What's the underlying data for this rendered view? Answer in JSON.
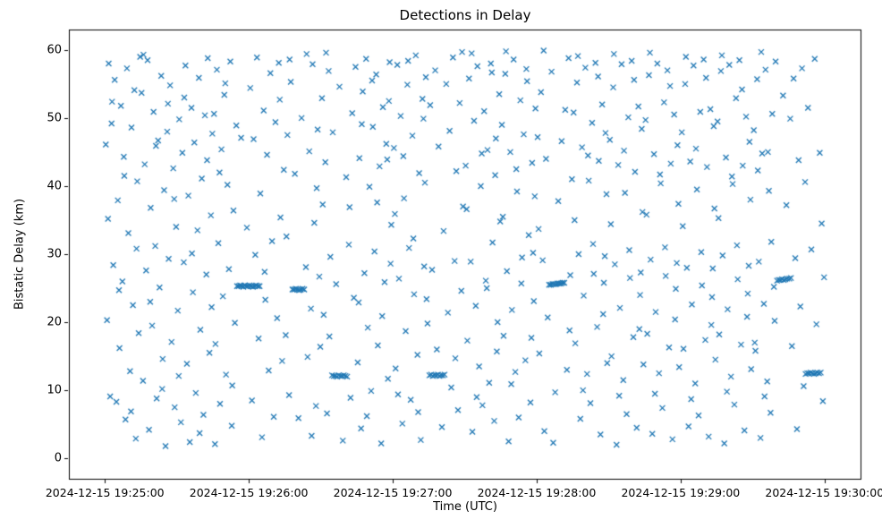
{
  "chart_data": {
    "type": "scatter",
    "title": "Detections in Delay",
    "xlabel": "Time (UTC)",
    "ylabel": "Bistatic Delay (km)",
    "marker": "x",
    "marker_color": "#1f77b4",
    "legend": "none",
    "grid": false,
    "x_axis": {
      "range_seconds": [
        -15,
        315
      ],
      "tick_seconds": [
        0,
        60,
        120,
        180,
        240,
        300
      ],
      "tick_labels": [
        "2024-12-15 19:25:00",
        "2024-12-15 19:26:00",
        "2024-12-15 19:27:00",
        "2024-12-15 19:28:00",
        "2024-12-15 19:29:00",
        "2024-12-15 19:30:00"
      ]
    },
    "y_axis": {
      "range": [
        -3,
        63
      ],
      "ticks": [
        0,
        10,
        20,
        30,
        40,
        50,
        60
      ]
    },
    "points_xy": [
      0.4,
      46.1,
      0.9,
      20.3,
      1.6,
      58.0,
      2.2,
      9.1,
      2.8,
      49.2,
      3.5,
      28.4,
      4.1,
      55.6,
      4.8,
      8.3,
      5.4,
      37.9,
      6.1,
      16.2,
      6.7,
      51.8,
      7.3,
      26.0,
      7.9,
      44.3,
      8.6,
      5.7,
      9.2,
      57.3,
      9.8,
      33.1,
      10.5,
      12.8,
      11.1,
      48.6,
      11.7,
      22.5,
      12.3,
      54.1,
      12.9,
      2.9,
      13.5,
      40.7,
      14.1,
      18.4,
      14.7,
      59.0,
      1.3,
      35.2,
      3.0,
      52.4,
      5.9,
      24.7,
      8.1,
      41.5,
      10.9,
      6.9,
      13.2,
      30.8,
      15.3,
      53.7,
      15.9,
      11.4,
      16.6,
      43.2,
      17.2,
      27.6,
      17.8,
      58.5,
      18.4,
      4.2,
      19.1,
      36.8,
      19.7,
      19.5,
      20.3,
      50.9,
      21.0,
      31.2,
      21.6,
      8.8,
      22.2,
      46.7,
      22.8,
      25.1,
      23.5,
      56.2,
      24.1,
      14.6,
      24.7,
      39.4,
      25.3,
      1.8,
      26.0,
      48.0,
      26.6,
      29.3,
      27.2,
      54.8,
      27.8,
      17.1,
      28.5,
      42.6,
      29.1,
      7.5,
      29.7,
      34.0,
      16.1,
      59.3,
      18.9,
      23.0,
      21.3,
      45.9,
      23.9,
      10.2,
      26.3,
      52.1,
      28.9,
      38.1,
      30.4,
      21.7,
      31.0,
      49.8,
      31.7,
      5.3,
      32.3,
      44.9,
      32.9,
      28.8,
      33.6,
      57.7,
      34.2,
      13.9,
      34.8,
      38.6,
      35.4,
      2.4,
      36.1,
      51.5,
      36.7,
      24.4,
      37.3,
      46.4,
      37.9,
      9.6,
      38.6,
      33.5,
      39.2,
      55.9,
      39.8,
      18.9,
      40.4,
      41.1,
      41.1,
      6.4,
      41.7,
      50.4,
      42.3,
      27.0,
      42.9,
      58.8,
      43.6,
      15.5,
      44.2,
      35.7,
      44.8,
      47.7,
      30.8,
      12.1,
      33.1,
      53.0,
      36.3,
      30.1,
      39.5,
      3.7,
      42.6,
      43.8,
      44.5,
      22.2,
      45.5,
      50.6,
      46.1,
      16.8,
      46.7,
      57.1,
      47.3,
      31.6,
      48.0,
      8.0,
      48.6,
      45.4,
      49.2,
      23.8,
      49.8,
      53.4,
      50.5,
      12.3,
      51.1,
      40.2,
      51.7,
      27.8,
      52.3,
      58.3,
      52.9,
      4.8,
      53.6,
      36.4,
      54.2,
      19.9,
      54.8,
      48.9,
      55.1,
      25.3,
      55.8,
      25.3,
      56.4,
      25.4,
      57.0,
      25.3,
      57.7,
      25.2,
      58.3,
      25.4,
      58.9,
      25.3,
      59.6,
      25.3,
      45.9,
      2.1,
      47.8,
      42.0,
      50.2,
      55.1,
      53.1,
      10.7,
      56.8,
      47.1,
      59.2,
      33.9,
      60.3,
      25.4,
      61.0,
      25.3,
      61.7,
      25.2,
      62.4,
      25.3,
      63.1,
      25.4,
      63.8,
      25.3,
      64.5,
      25.3,
      60.6,
      54.4,
      61.3,
      8.5,
      62.0,
      46.9,
      62.7,
      29.9,
      63.4,
      58.9,
      64.1,
      17.6,
      64.8,
      38.9,
      65.5,
      3.1,
      66.2,
      51.1,
      66.9,
      23.3,
      67.6,
      44.6,
      68.3,
      12.9,
      69.0,
      56.6,
      69.7,
      31.9,
      70.4,
      6.1,
      71.1,
      49.4,
      71.8,
      20.6,
      72.5,
      58.1,
      73.2,
      35.4,
      73.9,
      14.3,
      74.6,
      42.4,
      66.6,
      27.4,
      72.9,
      52.7,
      75.4,
      18.1,
      76.1,
      47.5,
      76.8,
      9.3,
      77.5,
      55.3,
      78.2,
      24.8,
      78.9,
      24.8,
      79.6,
      24.9,
      80.3,
      24.8,
      81.0,
      24.7,
      81.7,
      24.8,
      82.4,
      24.9,
      83.1,
      24.8,
      75.7,
      32.6,
      77.0,
      58.6,
      79.2,
      41.8,
      80.7,
      5.9,
      82.0,
      50.0,
      83.8,
      28.1,
      84.5,
      14.9,
      85.2,
      45.1,
      85.9,
      22.0,
      86.6,
      57.9,
      87.3,
      34.6,
      88.0,
      7.7,
      88.7,
      48.3,
      89.4,
      26.7,
      84.1,
      59.4,
      86.2,
      3.3,
      88.3,
      39.7,
      89.8,
      16.4,
      90.5,
      52.9,
      91.2,
      21.1,
      91.9,
      43.5,
      92.6,
      6.6,
      93.3,
      56.9,
      94.0,
      29.6,
      94.7,
      12.2,
      95.4,
      12.1,
      96.1,
      12.1,
      96.8,
      12.0,
      97.5,
      12.2,
      98.2,
      12.1,
      98.9,
      12.1,
      99.6,
      12.2,
      100.3,
      12.1,
      101.0,
      12.0,
      90.8,
      37.3,
      92.2,
      59.6,
      93.6,
      17.9,
      95.0,
      47.9,
      96.4,
      25.6,
      97.8,
      54.6,
      99.2,
      2.6,
      100.6,
      41.3,
      101.7,
      31.4,
      102.4,
      8.9,
      103.1,
      50.7,
      103.8,
      23.6,
      104.5,
      57.5,
      102.0,
      36.9,
      105.4,
      14.1,
      106.1,
      44.1,
      106.8,
      4.4,
      107.5,
      53.9,
      108.2,
      27.2,
      108.9,
      58.7,
      109.6,
      19.2,
      110.3,
      39.9,
      111.0,
      9.9,
      111.7,
      48.7,
      112.4,
      30.4,
      113.1,
      56.4,
      113.8,
      16.6,
      114.5,
      42.9,
      115.2,
      2.2,
      115.9,
      51.6,
      116.6,
      25.9,
      117.3,
      46.2,
      118.0,
      11.7,
      118.7,
      58.2,
      119.4,
      34.3,
      105.8,
      22.9,
      107.1,
      49.1,
      109.2,
      6.2,
      111.4,
      55.5,
      113.5,
      37.6,
      115.6,
      20.9,
      117.7,
      43.9,
      119.1,
      28.6,
      118.4,
      52.5,
      120.5,
      45.6,
      121.2,
      13.2,
      121.9,
      57.8,
      122.6,
      26.4,
      123.3,
      50.3,
      124.0,
      5.1,
      124.7,
      38.2,
      125.4,
      18.7,
      126.1,
      54.9,
      126.8,
      30.9,
      127.5,
      8.6,
      128.2,
      47.4,
      128.9,
      24.1,
      129.6,
      59.2,
      130.3,
      15.2,
      131.0,
      41.9,
      131.7,
      2.7,
      132.4,
      52.8,
      133.1,
      28.2,
      133.8,
      56.0,
      134.5,
      19.8,
      120.9,
      35.9,
      122.2,
      9.4,
      124.4,
      44.4,
      126.4,
      58.4,
      128.6,
      32.3,
      130.6,
      6.8,
      132.8,
      49.9,
      134.1,
      23.4,
      133.4,
      40.5,
      135.3,
      12.2,
      136.0,
      12.3,
      136.7,
      12.1,
      137.4,
      12.2,
      138.1,
      12.2,
      138.8,
      12.3,
      139.5,
      12.1,
      140.2,
      12.2,
      140.9,
      12.2,
      141.6,
      12.3,
      135.6,
      51.9,
      136.4,
      27.7,
      137.7,
      57.0,
      138.4,
      16.0,
      139.1,
      45.8,
      140.5,
      4.6,
      141.2,
      33.4,
      142.3,
      55.0,
      143.0,
      21.4,
      143.7,
      48.1,
      144.4,
      10.4,
      145.1,
      58.9,
      145.8,
      29.0,
      146.5,
      42.2,
      147.2,
      7.1,
      147.9,
      52.2,
      148.6,
      24.6,
      149.3,
      37.0,
      148.9,
      59.7,
      146.1,
      14.7,
      150.4,
      43.0,
      151.1,
      17.3,
      151.8,
      55.8,
      152.5,
      28.9,
      153.2,
      3.9,
      153.9,
      49.6,
      154.6,
      22.4,
      155.3,
      57.6,
      156.0,
      13.5,
      156.7,
      40.0,
      157.4,
      7.8,
      158.1,
      51.0,
      158.8,
      26.1,
      159.5,
      45.3,
      160.2,
      11.1,
      160.9,
      58.0,
      161.6,
      31.7,
      162.3,
      5.5,
      163.0,
      47.0,
      163.7,
      20.0,
      164.4,
      53.5,
      150.8,
      36.6,
      152.9,
      59.5,
      155.0,
      9.0,
      157.1,
      44.8,
      159.2,
      25.0,
      161.3,
      56.7,
      163.4,
      15.7,
      164.8,
      34.8,
      162.7,
      41.6,
      165.5,
      49.0,
      166.2,
      18.0,
      166.9,
      56.5,
      167.6,
      27.5,
      168.3,
      2.5,
      169.0,
      45.0,
      169.7,
      21.8,
      170.4,
      58.6,
      171.1,
      12.7,
      171.8,
      39.2,
      172.5,
      6.0,
      173.2,
      52.6,
      173.9,
      29.5,
      174.6,
      47.6,
      175.3,
      14.4,
      176.0,
      55.4,
      176.7,
      32.8,
      177.4,
      8.2,
      178.1,
      43.4,
      178.8,
      23.1,
      179.5,
      51.4,
      165.9,
      35.5,
      167.2,
      59.8,
      169.4,
      10.9,
      171.5,
      42.5,
      173.6,
      25.7,
      175.7,
      57.2,
      177.8,
      17.7,
      179.2,
      38.5,
      178.5,
      30.2,
      185.2,
      25.5,
      185.9,
      25.5,
      186.6,
      25.6,
      187.3,
      25.6,
      188.0,
      25.6,
      188.7,
      25.7,
      189.4,
      25.7,
      190.1,
      25.7,
      190.8,
      25.8,
      191.5,
      25.8,
      180.4,
      47.2,
      181.1,
      15.4,
      181.8,
      53.8,
      182.5,
      29.1,
      183.2,
      4.0,
      183.9,
      44.0,
      184.6,
      20.7,
      186.2,
      56.8,
      187.7,
      9.7,
      189.0,
      37.8,
      191.9,
      51.2,
      192.6,
      13.0,
      193.3,
      58.8,
      194.0,
      26.9,
      194.7,
      41.0,
      180.8,
      33.7,
      182.9,
      59.9,
      186.9,
      2.3,
      190.4,
      46.6,
      193.7,
      18.8,
      195.4,
      50.8,
      196.1,
      16.9,
      196.8,
      55.2,
      197.5,
      30.0,
      198.2,
      5.8,
      198.9,
      45.7,
      199.6,
      23.9,
      200.3,
      57.4,
      201.0,
      12.4,
      201.7,
      40.8,
      202.4,
      8.1,
      203.1,
      49.3,
      203.8,
      27.1,
      204.5,
      58.1,
      205.2,
      19.3,
      205.9,
      43.7,
      206.6,
      3.5,
      207.3,
      52.0,
      208.0,
      25.8,
      208.7,
      47.8,
      209.4,
      14.0,
      195.8,
      35.0,
      197.2,
      59.1,
      199.3,
      10.0,
      201.4,
      44.5,
      203.5,
      31.5,
      205.6,
      56.1,
      207.7,
      21.2,
      209.1,
      38.8,
      208.4,
      29.7,
      210.5,
      46.8,
      211.2,
      15.0,
      211.9,
      54.5,
      212.6,
      28.5,
      213.3,
      2.0,
      214.0,
      43.1,
      214.7,
      22.1,
      215.4,
      57.9,
      216.1,
      11.5,
      216.8,
      39.0,
      217.5,
      6.5,
      218.2,
      50.1,
      218.9,
      26.5,
      219.6,
      58.4,
      220.3,
      17.8,
      221.0,
      42.1,
      221.7,
      4.5,
      222.4,
      51.7,
      223.1,
      24.0,
      223.8,
      48.4,
      224.5,
      13.8,
      210.9,
      34.4,
      212.2,
      59.4,
      214.4,
      9.2,
      216.4,
      45.2,
      218.6,
      30.6,
      220.6,
      55.6,
      222.8,
      19.0,
      224.1,
      36.2,
      223.4,
      27.3,
      225.4,
      49.7,
      226.1,
      18.3,
      226.8,
      56.3,
      227.5,
      29.2,
      228.2,
      3.6,
      228.9,
      44.7,
      229.6,
      21.5,
      230.3,
      58.0,
      231.0,
      12.5,
      231.7,
      40.4,
      232.4,
      7.4,
      233.1,
      52.3,
      233.8,
      26.8,
      234.5,
      57.0,
      235.2,
      16.3,
      235.9,
      43.3,
      236.6,
      2.8,
      237.3,
      50.5,
      238.0,
      24.9,
      238.7,
      46.0,
      239.4,
      13.4,
      225.8,
      35.8,
      227.2,
      59.6,
      229.3,
      9.5,
      231.4,
      41.7,
      233.5,
      31.0,
      235.6,
      54.7,
      237.7,
      20.4,
      239.1,
      37.4,
      238.4,
      28.7,
      240.5,
      47.9,
      241.2,
      16.1,
      241.9,
      55.0,
      242.6,
      28.0,
      243.3,
      4.7,
      244.0,
      43.6,
      244.7,
      22.6,
      245.4,
      57.7,
      246.1,
      11.0,
      246.8,
      39.5,
      247.5,
      6.3,
      248.2,
      50.9,
      248.9,
      25.4,
      249.6,
      58.6,
      250.3,
      17.4,
      251.0,
      42.8,
      251.7,
      3.2,
      252.4,
      51.3,
      253.1,
      23.7,
      253.8,
      48.8,
      254.5,
      14.5,
      240.9,
      34.1,
      242.2,
      59.0,
      244.4,
      8.7,
      246.4,
      45.5,
      248.6,
      30.3,
      250.6,
      55.9,
      252.8,
      19.6,
      254.1,
      36.7,
      253.4,
      27.9,
      255.4,
      49.5,
      256.1,
      18.2,
      256.8,
      56.9,
      257.5,
      29.8,
      258.2,
      2.2,
      258.9,
      44.2,
      259.6,
      21.9,
      260.3,
      57.8,
      261.0,
      12.0,
      261.7,
      40.3,
      262.4,
      7.9,
      263.1,
      52.9,
      263.8,
      26.3,
      264.5,
      58.5,
      265.2,
      16.7,
      265.9,
      43.0,
      266.6,
      4.1,
      267.3,
      50.2,
      268.0,
      24.2,
      268.7,
      46.5,
      269.4,
      13.1,
      255.8,
      35.3,
      257.2,
      59.2,
      259.3,
      9.8,
      261.4,
      41.4,
      263.5,
      31.3,
      265.6,
      54.2,
      267.7,
      20.8,
      269.1,
      38.0,
      268.4,
      28.3,
      280.2,
      26.1,
      280.9,
      26.2,
      281.6,
      26.2,
      282.3,
      26.3,
      283.0,
      26.2,
      283.7,
      26.3,
      284.4,
      26.4,
      270.5,
      48.2,
      271.2,
      15.8,
      271.9,
      55.7,
      272.6,
      28.9,
      273.3,
      3.0,
      274.0,
      44.8,
      274.7,
      22.7,
      275.4,
      57.1,
      276.1,
      11.3,
      276.8,
      39.3,
      277.5,
      6.7,
      278.2,
      50.6,
      278.9,
      25.2,
      279.6,
      58.3,
      270.9,
      17.0,
      272.2,
      42.3,
      273.6,
      59.7,
      275.0,
      9.1,
      276.4,
      45.0,
      277.8,
      31.8,
      279.2,
      20.2,
      282.7,
      53.3,
      284.1,
      37.2,
      285.3,
      26.4,
      286.0,
      26.5,
      292.1,
      12.4,
      292.8,
      12.5,
      293.5,
      12.5,
      294.2,
      12.6,
      294.9,
      12.5,
      295.6,
      12.4,
      296.3,
      12.5,
      297.0,
      12.6,
      297.7,
      12.5,
      298.4,
      12.6,
      285.7,
      49.9,
      286.4,
      16.5,
      287.1,
      55.8,
      287.8,
      29.4,
      288.5,
      4.3,
      289.2,
      43.8,
      289.9,
      22.3,
      290.6,
      57.3,
      291.3,
      10.6,
      291.9,
      40.6,
      293.1,
      51.5,
      294.5,
      30.7,
      295.9,
      58.7,
      296.6,
      19.7,
      298.0,
      44.9,
      298.8,
      34.5,
      299.3,
      8.4,
      299.8,
      26.6
    ]
  }
}
